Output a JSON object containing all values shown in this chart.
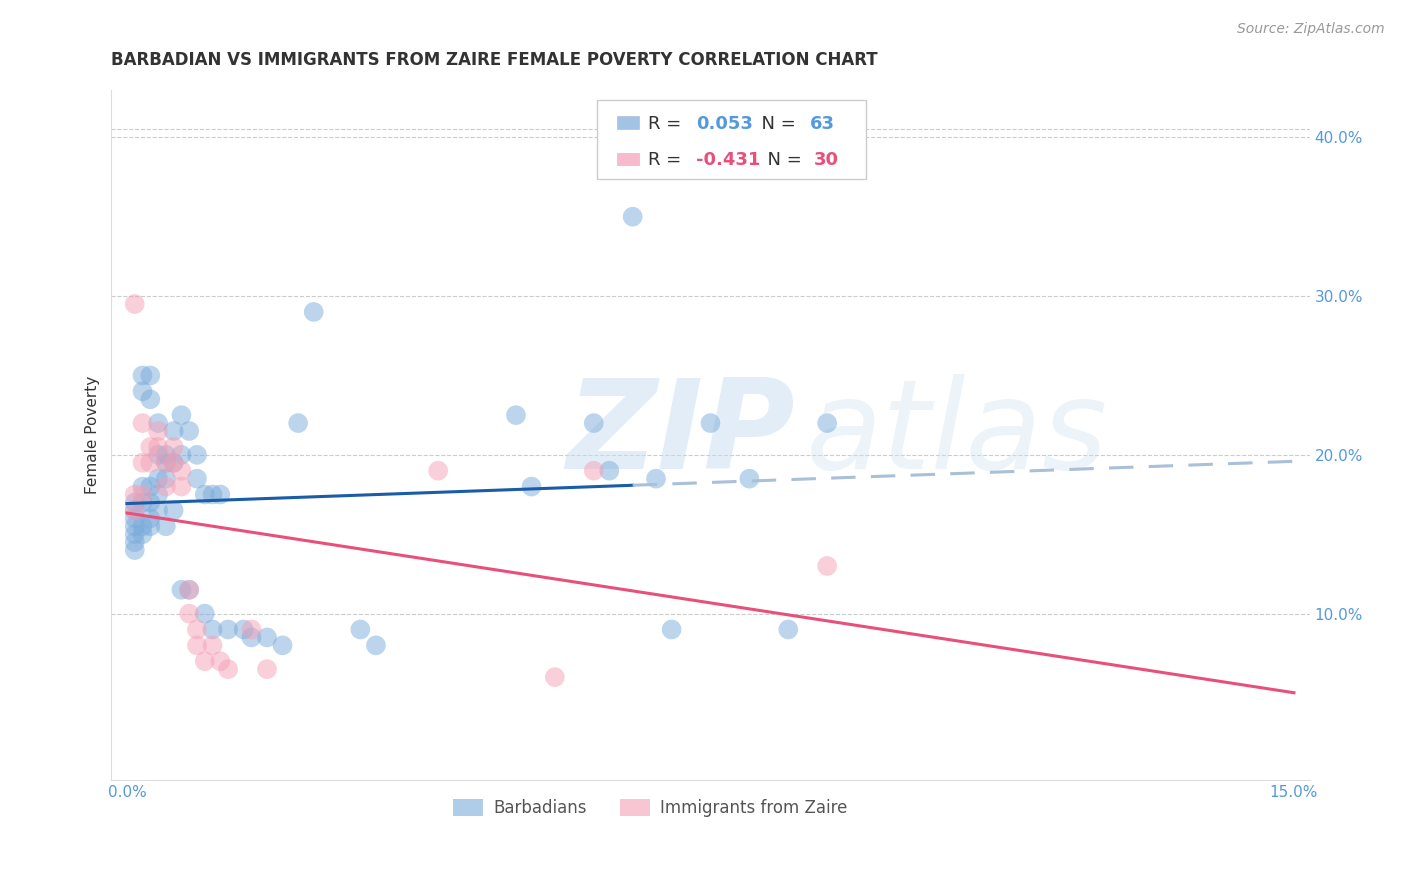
{
  "title": "BARBADIAN VS IMMIGRANTS FROM ZAIRE FEMALE POVERTY CORRELATION CHART",
  "source": "Source: ZipAtlas.com",
  "ylabel": "Female Poverty",
  "xlim": [
    -0.002,
    0.152
  ],
  "ylim": [
    -0.005,
    0.43
  ],
  "xticks": [
    0.0,
    0.15
  ],
  "xticklabels": [
    "0.0%",
    "15.0%"
  ],
  "yticks_right": [
    0.1,
    0.2,
    0.3,
    0.4
  ],
  "ytick_labels_right": [
    "10.0%",
    "20.0%",
    "30.0%",
    "40.0%"
  ],
  "background_color": "#ffffff",
  "grid_color": "#cccccc",
  "blue_color": "#7aabdb",
  "pink_color": "#f4a0b5",
  "blue_line_color": "#1a5ca8",
  "blue_dash_color": "#aabfd8",
  "pink_line_color": "#e8507a",
  "axis_color": "#5599dd",
  "text_color": "#333333",
  "R_blue": "0.053",
  "N_blue": "63",
  "R_pink": "-0.431",
  "N_pink": "30",
  "legend_label_blue": "Barbadians",
  "legend_label_pink": "Immigrants from Zaire",
  "blue_x": [
    0.001,
    0.001,
    0.001,
    0.001,
    0.001,
    0.001,
    0.001,
    0.002,
    0.002,
    0.002,
    0.002,
    0.002,
    0.002,
    0.003,
    0.003,
    0.003,
    0.003,
    0.003,
    0.003,
    0.004,
    0.004,
    0.004,
    0.004,
    0.004,
    0.005,
    0.005,
    0.005,
    0.005,
    0.006,
    0.006,
    0.006,
    0.007,
    0.007,
    0.007,
    0.008,
    0.008,
    0.009,
    0.009,
    0.01,
    0.01,
    0.011,
    0.011,
    0.012,
    0.013,
    0.015,
    0.016,
    0.018,
    0.02,
    0.022,
    0.024,
    0.03,
    0.032,
    0.05,
    0.052,
    0.06,
    0.062,
    0.065,
    0.068,
    0.07,
    0.075,
    0.08,
    0.085,
    0.09
  ],
  "blue_y": [
    0.17,
    0.16,
    0.15,
    0.155,
    0.165,
    0.145,
    0.14,
    0.25,
    0.24,
    0.18,
    0.17,
    0.155,
    0.15,
    0.25,
    0.235,
    0.18,
    0.17,
    0.16,
    0.155,
    0.22,
    0.2,
    0.185,
    0.175,
    0.165,
    0.2,
    0.195,
    0.185,
    0.155,
    0.215,
    0.195,
    0.165,
    0.225,
    0.2,
    0.115,
    0.215,
    0.115,
    0.2,
    0.185,
    0.175,
    0.1,
    0.175,
    0.09,
    0.175,
    0.09,
    0.09,
    0.085,
    0.085,
    0.08,
    0.22,
    0.29,
    0.09,
    0.08,
    0.225,
    0.18,
    0.22,
    0.19,
    0.35,
    0.185,
    0.09,
    0.22,
    0.185,
    0.09,
    0.22
  ],
  "pink_x": [
    0.001,
    0.001,
    0.001,
    0.002,
    0.002,
    0.002,
    0.003,
    0.003,
    0.004,
    0.004,
    0.005,
    0.005,
    0.006,
    0.006,
    0.007,
    0.007,
    0.008,
    0.008,
    0.009,
    0.009,
    0.01,
    0.011,
    0.012,
    0.013,
    0.016,
    0.018,
    0.04,
    0.055,
    0.06,
    0.09
  ],
  "pink_y": [
    0.295,
    0.175,
    0.165,
    0.22,
    0.195,
    0.175,
    0.205,
    0.195,
    0.215,
    0.205,
    0.195,
    0.18,
    0.205,
    0.195,
    0.19,
    0.18,
    0.115,
    0.1,
    0.09,
    0.08,
    0.07,
    0.08,
    0.07,
    0.065,
    0.09,
    0.065,
    0.19,
    0.06,
    0.19,
    0.13
  ],
  "watermark_zip": "ZIP",
  "watermark_atlas": "atlas",
  "blue_line_x_end": 0.065,
  "title_fontsize": 12,
  "axis_label_fontsize": 11,
  "tick_fontsize": 11,
  "source_fontsize": 10,
  "legend_fontsize": 13
}
